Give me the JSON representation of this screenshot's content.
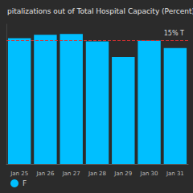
{
  "chart_data": {
    "type": "bar",
    "title": "pitalizations out of Total Hospital Capacity (Percent)",
    "categories": [
      "Jan 25",
      "Jan 26",
      "Jan 27",
      "Jan 28",
      "Jan 29",
      "Jan 30",
      "Jan 31"
    ],
    "series": [
      {
        "name": "F",
        "color": "#00bfff",
        "values": [
          15.3,
          15.7,
          15.8,
          14.9,
          13.0,
          15.0,
          14.1
        ]
      }
    ],
    "ylim": [
      0,
      17
    ],
    "annotations": [
      {
        "y": 15,
        "text": "15% T",
        "color": "#e03030",
        "line_style": "dashed"
      }
    ],
    "grid": false,
    "legend": "bottom-left",
    "tick_labels": "x"
  }
}
